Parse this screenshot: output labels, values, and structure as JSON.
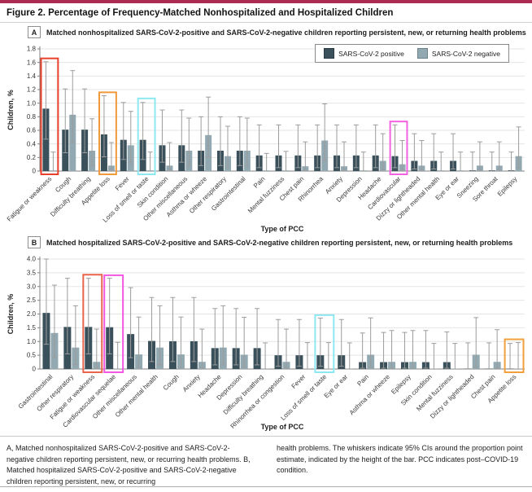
{
  "figure": {
    "title": "Figure 2. Percentage of Frequency-Matched Nonhospitalized and Hospitalized Children",
    "top_rule_color": "#ad2a52"
  },
  "panels": [
    {
      "letter": "A",
      "heading": "Matched nonhospitalized SARS-CoV-2-positive and SARS-CoV-2-negative children reporting persistent, new, or returning health problems"
    },
    {
      "letter": "B",
      "heading": "Matched hospitalized SARS-CoV-2-positive and SARS-CoV-2-negative children reporting persistent, new, or returning health problems"
    }
  ],
  "caption": {
    "left": "A, Matched nonhospitalized SARS-CoV-2-positive and SARS-CoV-2-negative children reporting persistent, new, or recurring health problems. B, Matched hospitalized SARS-CoV-2-positive and SARS-CoV-2-negative children reporting persistent, new, or recurring",
    "right": "health problems. The whiskers indicate 95% CIs around the proportion point estimate, indicated by the height of the bar. PCC indicates post–COVID-19 condition."
  },
  "chart_data": [
    {
      "type": "bar",
      "title": "Matched nonhospitalized children reporting persistent, new, or returning health problems",
      "ylabel": "Children, %",
      "xlabel": "Type of PCC",
      "ylim": [
        0,
        1.8
      ],
      "ytick_step": 0.2,
      "grid": true,
      "legend_position": "top-right",
      "categories": [
        "Fatigue or weakness",
        "Cough",
        "Difficulty breathing",
        "Appetite loss",
        "Fever",
        "Loss of smell or taste",
        "Skin condition",
        "Other miscellaneous",
        "Asthma or wheeze",
        "Other respiratory",
        "Gastrointestinal",
        "Pain",
        "Mental fuzziness",
        "Chest pain",
        "Rhinorrhea",
        "Anxiety",
        "Depression",
        "Headache",
        "Cardiovascular",
        "Dizzy or lightheaded",
        "Other mental health",
        "Eye or ear",
        "Sneezing",
        "Sore throat",
        "Epilepsy"
      ],
      "series": [
        {
          "name": "SARS-CoV-2 positive",
          "color": "#3a515c",
          "values": [
            0.92,
            0.61,
            0.61,
            0.54,
            0.46,
            0.46,
            0.38,
            0.38,
            0.3,
            0.3,
            0.3,
            0.23,
            0.23,
            0.23,
            0.23,
            0.23,
            0.23,
            0.23,
            0.22,
            0.15,
            0.15,
            0.15,
            0.01,
            0.01,
            0.01
          ],
          "ci_low": [
            0.47,
            0.27,
            0.27,
            0.21,
            0.17,
            0.17,
            0.13,
            0.13,
            0.08,
            0.08,
            0.08,
            0.05,
            0.05,
            0.05,
            0.05,
            0.05,
            0.05,
            0.05,
            0.05,
            0.03,
            0.03,
            0.03,
            0,
            0,
            0
          ],
          "ci_high": [
            1.61,
            1.21,
            1.21,
            1.11,
            1.01,
            1.01,
            0.9,
            0.9,
            0.8,
            0.8,
            0.8,
            0.68,
            0.68,
            0.68,
            0.68,
            0.68,
            0.68,
            0.68,
            0.68,
            0.55,
            0.55,
            0.55,
            0.28,
            0.28,
            0.28
          ]
        },
        {
          "name": "SARS-CoV-2 negative",
          "color": "#92a9b2",
          "values": [
            0.01,
            0.83,
            0.3,
            0.08,
            0.38,
            0.01,
            0.08,
            0.3,
            0.53,
            0.22,
            0.3,
            0.01,
            0.01,
            0.07,
            0.45,
            0.07,
            0.01,
            0.15,
            0.1,
            0.08,
            0.01,
            0.01,
            0.08,
            0.08,
            0.22
          ],
          "ci_low": [
            0,
            0.42,
            0.08,
            0.01,
            0.12,
            0,
            0.01,
            0.08,
            0.21,
            0.05,
            0.08,
            0,
            0,
            0.01,
            0.16,
            0.01,
            0,
            0.02,
            0.01,
            0.01,
            0,
            0,
            0.01,
            0.01,
            0.05
          ],
          "ci_high": [
            0.28,
            1.48,
            0.77,
            0.42,
            0.88,
            0.28,
            0.42,
            0.78,
            1.09,
            0.66,
            0.78,
            0.26,
            0.29,
            0.43,
            0.99,
            0.43,
            0.28,
            0.55,
            0.45,
            0.45,
            0.28,
            0.28,
            0.43,
            0.43,
            0.65
          ]
        }
      ],
      "highlight_boxes": [
        {
          "category": "Fatigue or weakness",
          "index": 0,
          "top": 1.66,
          "color": "#e8402a"
        },
        {
          "category": "Appetite loss",
          "index": 3,
          "top": 1.16,
          "color": "#f0993a"
        },
        {
          "category": "Loss of smell or taste",
          "index": 5,
          "top": 1.07,
          "color": "#8ce9f1"
        },
        {
          "category": "Cardiovascular",
          "index": 18,
          "top": 0.73,
          "color": "#f263df"
        }
      ]
    },
    {
      "type": "bar",
      "title": "Matched hospitalized children reporting persistent, new, or returning health problems",
      "ylabel": "Children, %",
      "xlabel": "Type of PCC",
      "ylim": [
        0,
        4.0
      ],
      "ytick_step": 0.5,
      "grid": true,
      "legend_position": "none",
      "categories": [
        "Gastrointestinal",
        "Other respiratory",
        "Fatigue or weakness",
        "Cardiovascular sequelae",
        "Other miscellaneous",
        "Other mental health",
        "Cough",
        "Anxiety",
        "Headache",
        "Depression",
        "Difficulty breathing",
        "Rhinorrhea or congestion",
        "Fever",
        "Loss of smell or taste",
        "Eye or ear",
        "Pain",
        "Asthma or wheeze",
        "Epilepsy",
        "Skin condition",
        "Mental fuzziness",
        "Dizzy or lightheaded",
        "Chest pain",
        "Appetite loss"
      ],
      "series": [
        {
          "name": "SARS-CoV-2 positive",
          "color": "#3a515c",
          "values": [
            2.04,
            1.53,
            1.53,
            1.52,
            1.27,
            1.02,
            1.01,
            1.01,
            0.76,
            0.76,
            0.76,
            0.5,
            0.5,
            0.5,
            0.5,
            0.25,
            0.25,
            0.25,
            0.25,
            0.25,
            0.01,
            0.01,
            0.01
          ],
          "ci_low": [
            0.9,
            0.55,
            0.55,
            0.55,
            0.41,
            0.27,
            0.27,
            0.27,
            0.15,
            0.15,
            0.15,
            0.1,
            0.1,
            0.1,
            0.1,
            0.03,
            0.03,
            0.03,
            0.03,
            0.03,
            0,
            0,
            0
          ],
          "ci_high": [
            4.0,
            3.3,
            3.3,
            3.3,
            2.96,
            2.6,
            2.6,
            2.6,
            2.2,
            2.2,
            2.2,
            1.8,
            1.8,
            1.85,
            1.8,
            1.31,
            1.33,
            1.33,
            1.4,
            1.35,
            0.95,
            0.95,
            0.93
          ]
        },
        {
          "name": "SARS-CoV-2 negative",
          "color": "#92a9b2",
          "values": [
            1.31,
            0.78,
            0.26,
            0.01,
            0.53,
            0.78,
            0.53,
            0.26,
            0.78,
            0.52,
            0.01,
            0.26,
            0.01,
            0.01,
            0.01,
            0.52,
            0.26,
            0.26,
            0.01,
            0.01,
            0.52,
            0.26,
            0.01
          ],
          "ci_low": [
            0.42,
            0.15,
            0.03,
            0,
            0.06,
            0.15,
            0.06,
            0.03,
            0.15,
            0.06,
            0,
            0.03,
            0,
            0,
            0,
            0.06,
            0.03,
            0.03,
            0,
            0,
            0.06,
            0.03,
            0
          ],
          "ci_high": [
            3.05,
            2.3,
            1.45,
            0.97,
            1.89,
            2.3,
            1.89,
            1.45,
            2.3,
            1.88,
            0.95,
            1.45,
            0.96,
            0.96,
            0.95,
            1.86,
            1.4,
            1.4,
            0.93,
            0.93,
            1.87,
            1.43,
            0.96
          ]
        }
      ],
      "highlight_boxes": [
        {
          "category": "Fatigue or weakness",
          "index": 2,
          "top": 3.43,
          "color": "#e8644a"
        },
        {
          "category": "Cardiovascular sequelae",
          "index": 3,
          "top": 3.41,
          "color": "#f257e2"
        },
        {
          "category": "Loss of smell or taste",
          "index": 13,
          "top": 1.96,
          "color": "#8ce9f1"
        },
        {
          "category": "Appetite loss",
          "index": 22,
          "top": 1.08,
          "color": "#f0a03c"
        }
      ]
    }
  ]
}
